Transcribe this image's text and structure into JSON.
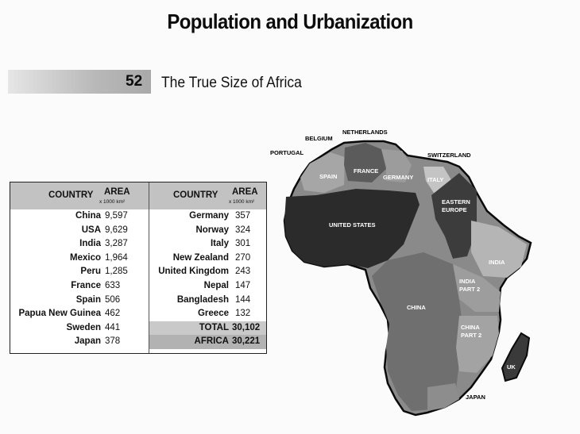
{
  "page_title": "Population and Urbanization",
  "section": {
    "number": "52",
    "title": "The True Size of Africa"
  },
  "table": {
    "header_country": "COUNTRY",
    "header_area": "AREA",
    "header_unit": "x 1000 km²",
    "left_rows": [
      {
        "country": "China",
        "area": "9,597"
      },
      {
        "country": "USA",
        "area": "9,629"
      },
      {
        "country": "India",
        "area": "3,287"
      },
      {
        "country": "Mexico",
        "area": "1,964"
      },
      {
        "country": "Peru",
        "area": "1,285"
      },
      {
        "country": "France",
        "area": "633"
      },
      {
        "country": "Spain",
        "area": "506"
      },
      {
        "country": "Papua New Guinea",
        "area": "462"
      },
      {
        "country": "Sweden",
        "area": "441"
      },
      {
        "country": "Japan",
        "area": "378"
      }
    ],
    "right_rows": [
      {
        "country": "Germany",
        "area": "357"
      },
      {
        "country": "Norway",
        "area": "324"
      },
      {
        "country": "Italy",
        "area": "301"
      },
      {
        "country": "New Zealand",
        "area": "270"
      },
      {
        "country": "United Kingdom",
        "area": "243"
      },
      {
        "country": "Nepal",
        "area": "147"
      },
      {
        "country": "Bangladesh",
        "area": "144"
      },
      {
        "country": "Greece",
        "area": "132"
      }
    ],
    "total": {
      "label": "TOTAL",
      "value": "30,102"
    },
    "africa": {
      "label": "AFRICA",
      "value": "30,221"
    }
  },
  "map_labels": {
    "netherlands": "NETHERLANDS",
    "belgium": "BELGIUM",
    "portugal": "PORTUGAL",
    "switzerland": "SWITZERLAND",
    "spain": "SPAIN",
    "france": "FRANCE",
    "germany": "GERMANY",
    "italy": "ITALY",
    "eastern_europe_1": "EASTERN",
    "eastern_europe_2": "EUROPE",
    "united_states": "UNITED STATES",
    "india": "INDIA",
    "india_part2_1": "INDIA",
    "india_part2_2": "PART 2",
    "china": "CHINA",
    "china_part2_1": "CHINA",
    "china_part2_2": "PART 2",
    "uk": "UK",
    "japan": "JAPAN"
  }
}
